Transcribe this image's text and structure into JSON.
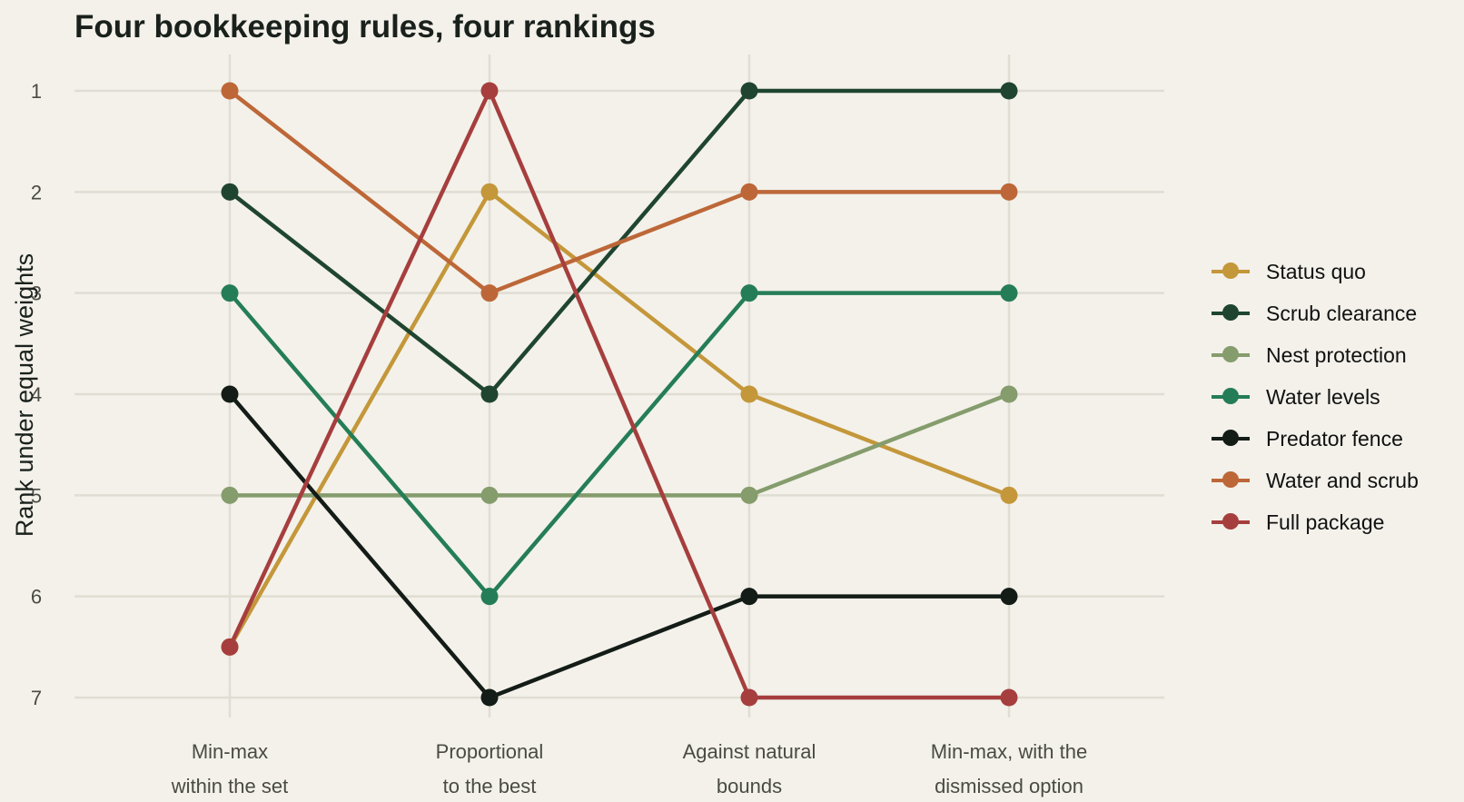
{
  "chart_data": {
    "type": "line",
    "title": "Four bookkeeping rules, four rankings",
    "xlabel": "",
    "ylabel": "Rank under equal weights",
    "categories": [
      [
        "Min-max",
        "within the set"
      ],
      [
        "Proportional",
        "to the best"
      ],
      [
        "Against natural",
        "bounds"
      ],
      [
        "Min-max, with the",
        "dismissed option"
      ]
    ],
    "y_ticks": [
      "1",
      "2",
      "3",
      "4",
      "5",
      "6",
      "7"
    ],
    "ylim": [
      1,
      7
    ],
    "y_reversed": true,
    "grid": true,
    "legend_position": "right",
    "series": [
      {
        "name": "Status quo",
        "color": "#c4973a",
        "values": [
          6.5,
          2,
          4,
          5
        ]
      },
      {
        "name": "Scrub clearance",
        "color": "#1f4530",
        "values": [
          2,
          4,
          1,
          1
        ]
      },
      {
        "name": "Nest protection",
        "color": "#859c6d",
        "values": [
          5,
          5,
          5,
          4
        ]
      },
      {
        "name": "Water levels",
        "color": "#257d57",
        "values": [
          3,
          6,
          3,
          3
        ]
      },
      {
        "name": "Predator fence",
        "color": "#141c17",
        "values": [
          4,
          7,
          6,
          6
        ]
      },
      {
        "name": "Water and scrub",
        "color": "#bd6738",
        "values": [
          1,
          3,
          2,
          2
        ]
      },
      {
        "name": "Full package",
        "color": "#a63e3e",
        "values": [
          6.5,
          1,
          7,
          7
        ]
      }
    ]
  }
}
